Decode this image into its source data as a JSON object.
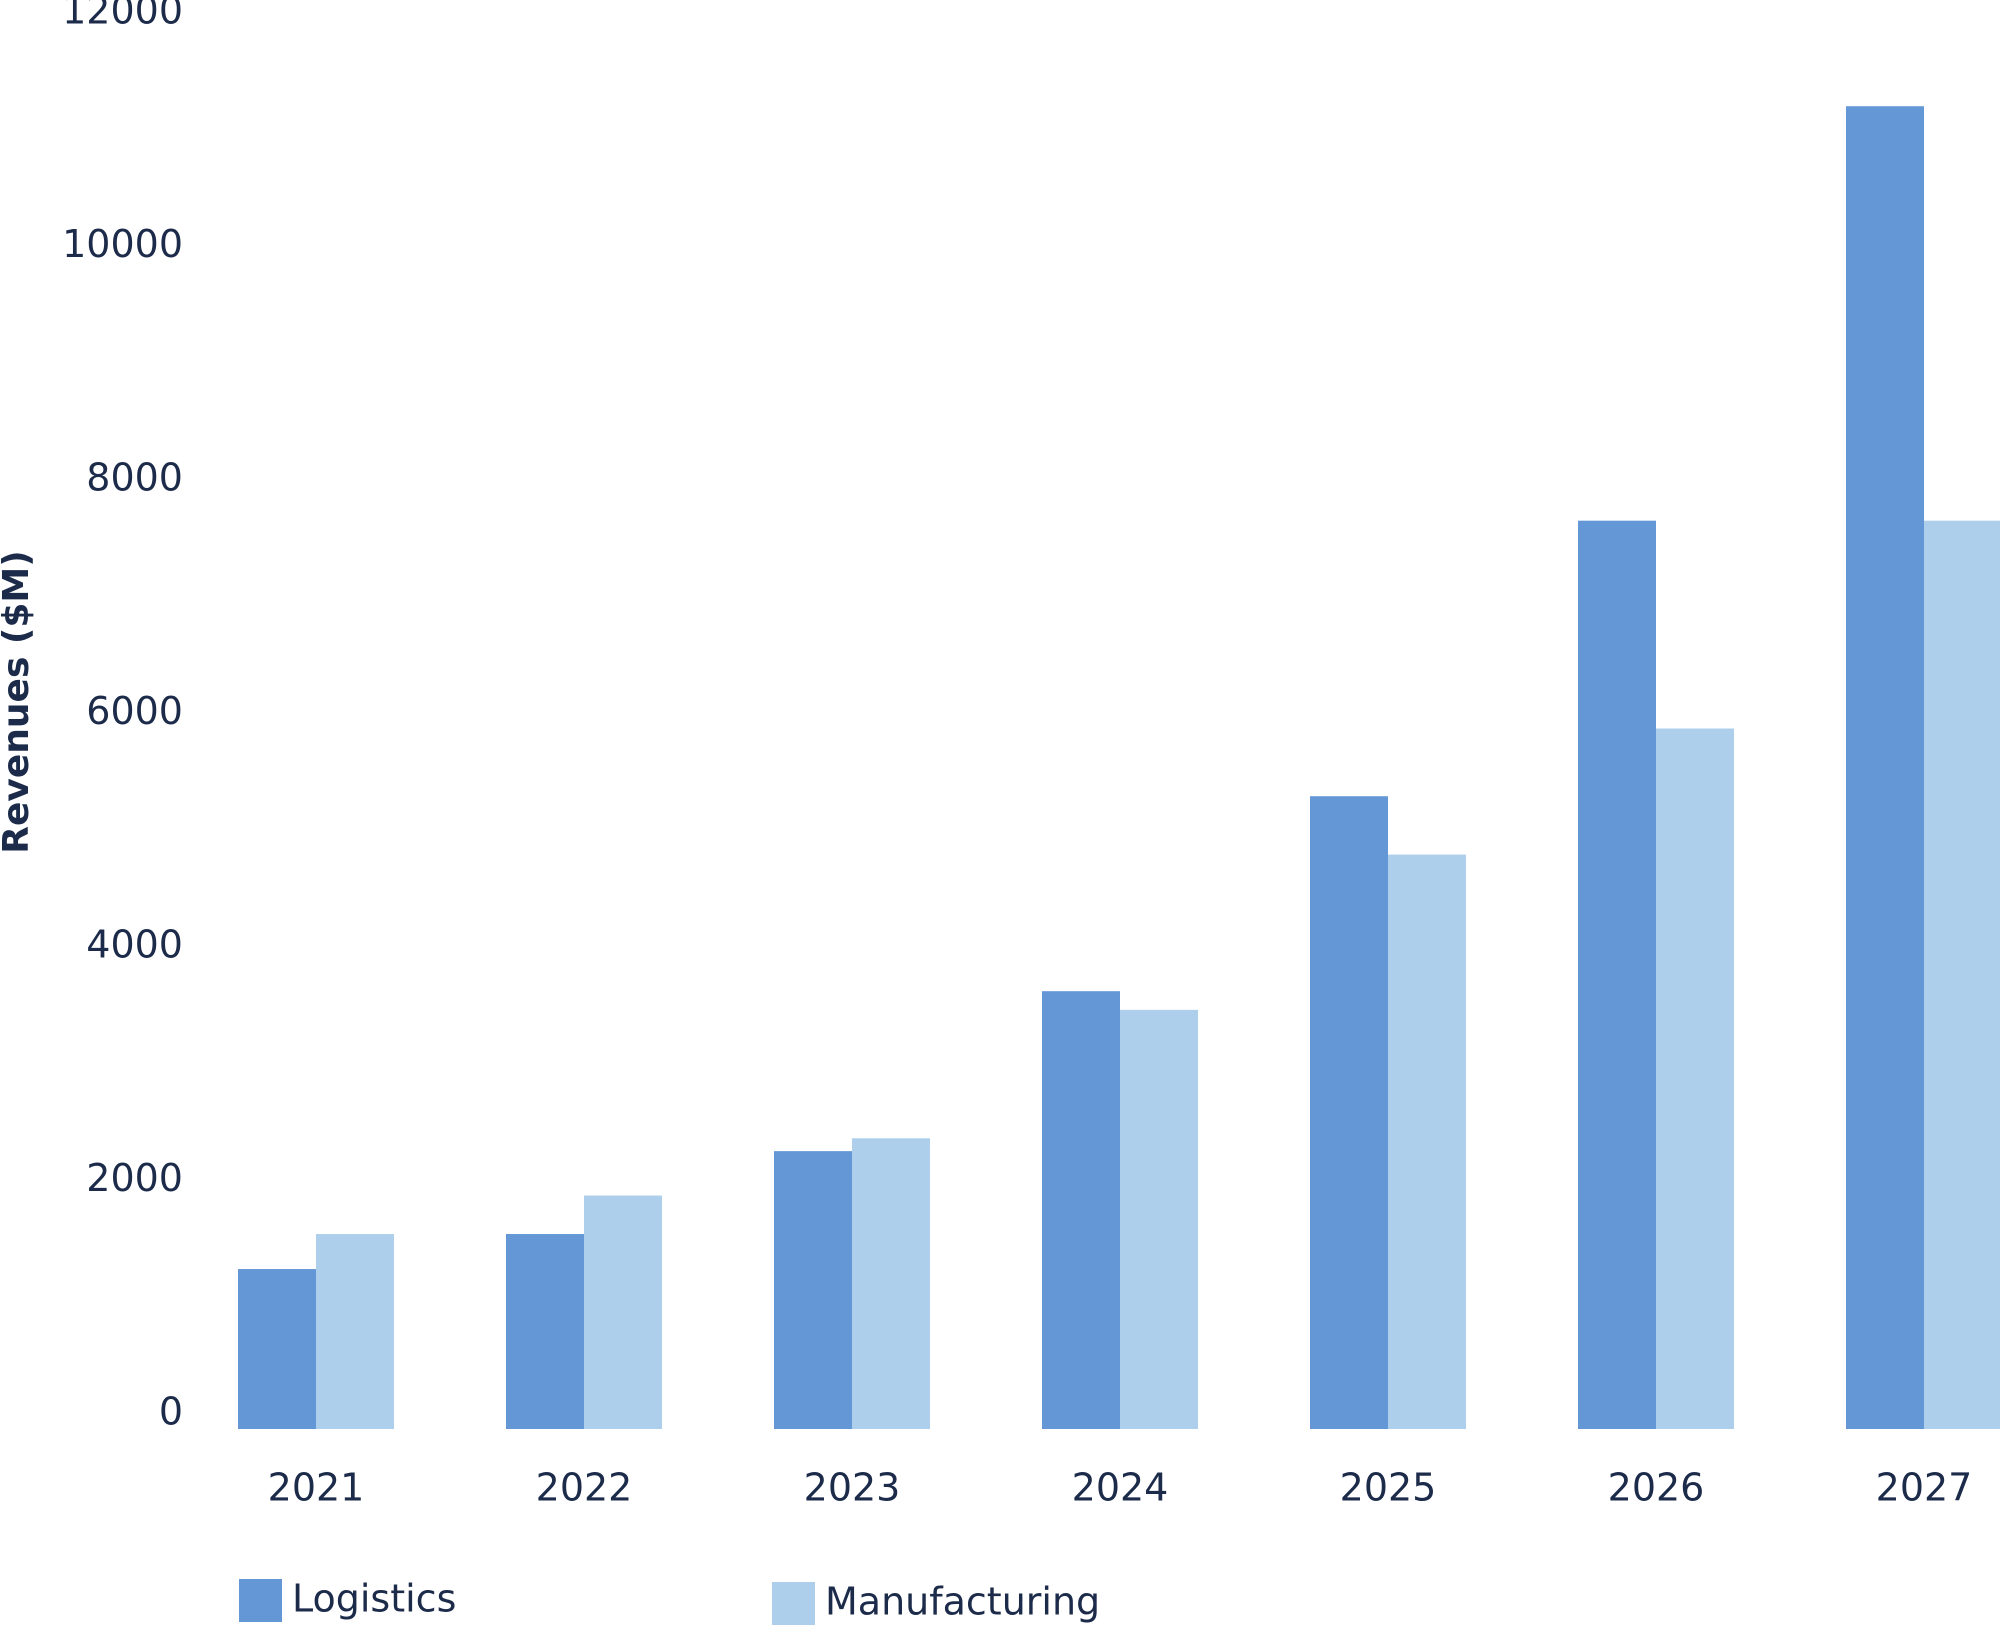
{
  "chart_data": {
    "type": "bar",
    "y_label": "Revenues ($M)",
    "categories": [
      "2021",
      "2022",
      "2023",
      "2024",
      "2025",
      "2026",
      "2027"
    ],
    "series": [
      {
        "name": "Logistics",
        "color": "#6497d6",
        "values": [
          1370,
          1670,
          2380,
          3750,
          5420,
          7780,
          11330
        ]
      },
      {
        "name": "Manufacturing",
        "color": "#aecfeb",
        "values": [
          1670,
          2000,
          2490,
          3590,
          4920,
          6000,
          7780
        ]
      }
    ],
    "ylim": [
      0,
      12000
    ],
    "yticks": [
      0,
      2000,
      4000,
      6000,
      8000,
      10000,
      12000
    ],
    "grid": false
  }
}
